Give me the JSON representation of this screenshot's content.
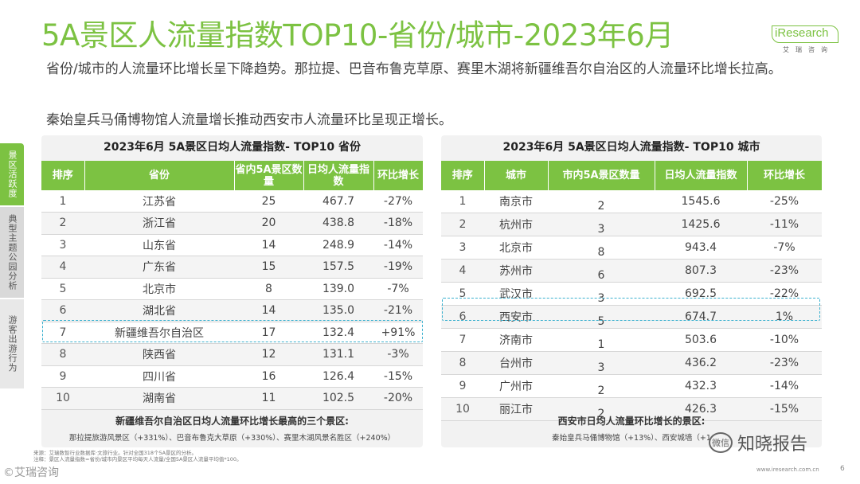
{
  "title": "5A景区人流量指数TOP10-省份/城市-2023年6月",
  "logo": {
    "brand": "iResearch",
    "cn": "艾瑞咨询"
  },
  "subtitle1": "省份/城市的人流量环比增长呈下降趋势。那拉提、巴音布鲁克草原、赛里木湖将新疆维吾尔自治区的人流量环比增长拉高。",
  "subtitle2": "秦始皇兵马俑博物馆人流量增长推动西安市人流量环比呈现正增长。",
  "sidebar": [
    "景区活跃度",
    "典型主题公园分析",
    "游客出游行为"
  ],
  "left": {
    "title": "2023年6月 5A景区日均人流量指数- TOP10 省份",
    "headers": [
      "排序",
      "省份",
      "省内5A景区数量",
      "日均人流量指数",
      "环比增长"
    ],
    "rows": [
      [
        "1",
        "江苏省",
        "25",
        "467.7",
        "-27%"
      ],
      [
        "2",
        "浙江省",
        "20",
        "438.8",
        "-18%"
      ],
      [
        "3",
        "山东省",
        "14",
        "248.9",
        "-14%"
      ],
      [
        "4",
        "广东省",
        "15",
        "157.5",
        "-19%"
      ],
      [
        "5",
        "北京市",
        "8",
        "139.0",
        "-7%"
      ],
      [
        "6",
        "湖北省",
        "14",
        "135.0",
        "-21%"
      ],
      [
        "7",
        "新疆维吾尔自治区",
        "17",
        "132.4",
        "+91%"
      ],
      [
        "8",
        "陕西省",
        "12",
        "131.1",
        "-3%"
      ],
      [
        "9",
        "四川省",
        "16",
        "126.4",
        "-15%"
      ],
      [
        "10",
        "湖南省",
        "11",
        "102.5",
        "-20%"
      ]
    ],
    "foot_title": "新疆维吾尔自治区日均人流量环比增长最高的三个景区:",
    "foot_body": "那拉提旅游风景区（+331%）、巴音布鲁克大草原（+330%）、赛里木湖风景名胜区（+240%）"
  },
  "right": {
    "title": "2023年6月 5A景区日均人流量指数- TOP10 城市",
    "headers": [
      "排序",
      "城市",
      "市内5A景区数量",
      "日均人流量指数",
      "环比增长"
    ],
    "rows": [
      [
        "1",
        "南京市",
        "2",
        "1545.6",
        "-25%"
      ],
      [
        "2",
        "杭州市",
        "3",
        "1425.6",
        "-11%"
      ],
      [
        "3",
        "北京市",
        "8",
        "943.4",
        "-7%"
      ],
      [
        "4",
        "苏州市",
        "6",
        "807.3",
        "-23%"
      ],
      [
        "5",
        "武汉市",
        "3",
        "692.5",
        "-22%"
      ],
      [
        "6",
        "西安市",
        "5",
        "674.7",
        "1%"
      ],
      [
        "7",
        "济南市",
        "1",
        "503.6",
        "-10%"
      ],
      [
        "8",
        "台州市",
        "3",
        "436.2",
        "-23%"
      ],
      [
        "9",
        "广州市",
        "2",
        "432.3",
        "-14%"
      ],
      [
        "10",
        "丽江市",
        "2",
        "426.3",
        "-15%"
      ]
    ],
    "foot_title": "西安市日均人流量环比增长的景区:",
    "foot_body": "秦始皇兵马俑博物馆（+13%）、西安城墙（+1"
  },
  "source": "来源：艾瑞数智行业数据库·文旅行业。针对全国318个5A景区的分析。\n注释：景区人流量指数=省份/城市内景区平均每天人流量/全国5A景区人流量平均值*100。",
  "corner_text": "©艾瑞咨询",
  "wechat": {
    "icon": "微信",
    "name": "知晓报告"
  },
  "site": "www.iresearch.com.cn",
  "page_no": "6"
}
